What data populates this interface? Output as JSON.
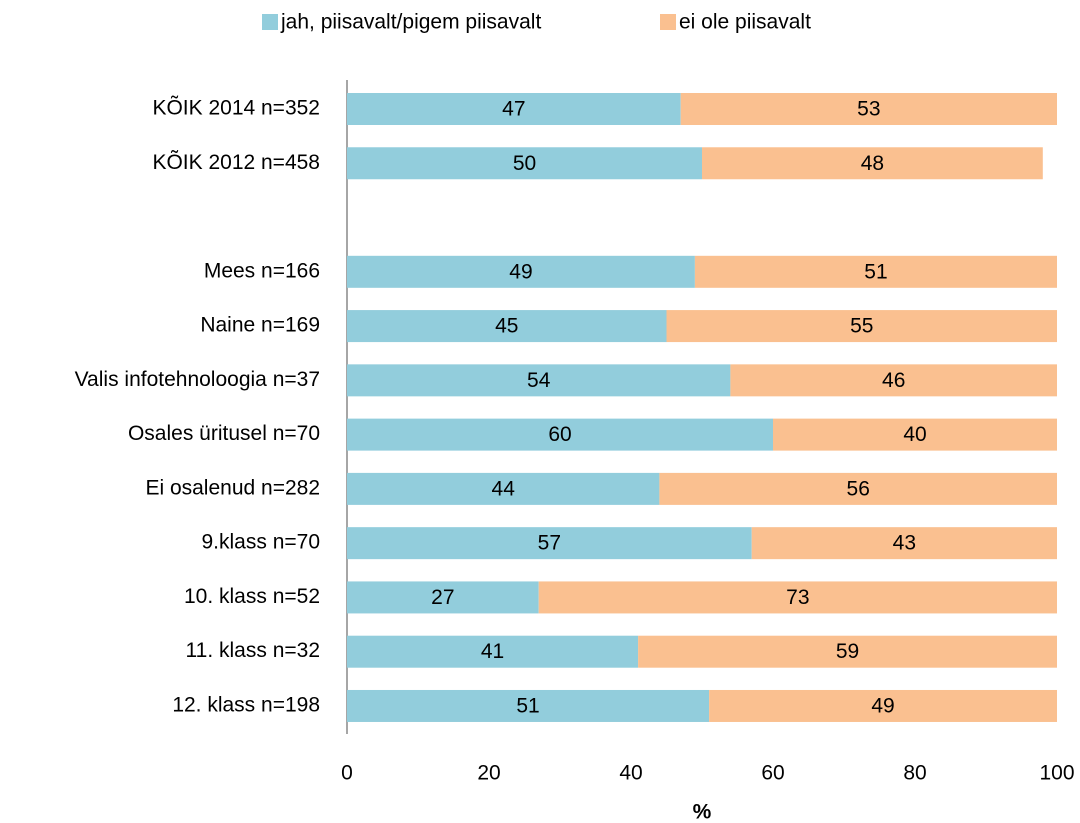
{
  "chart_data": {
    "type": "stacked_barh",
    "categories": [
      "KÕIK 2014 n=352",
      "KÕIK 2012 n=458",
      null,
      "Mees n=166",
      "Naine n=169",
      "Valis infotehnoloogia n=37",
      "Osales üritusel n=70",
      "Ei osalenud n=282",
      "9.klass n=70",
      "10. klass n=52",
      "11. klass n=32",
      "12. klass n=198"
    ],
    "series": [
      {
        "name": "jah, piisavalt/pigem  piisavalt",
        "color": "#92cddc",
        "values": [
          47,
          50,
          null,
          49,
          45,
          54,
          60,
          44,
          57,
          27,
          41,
          51
        ]
      },
      {
        "name": "ei ole piisavalt",
        "color": "#fac090",
        "values": [
          53,
          48,
          null,
          51,
          55,
          46,
          40,
          56,
          43,
          73,
          59,
          49
        ]
      }
    ],
    "xlim": [
      0,
      100
    ],
    "xticks": [
      0,
      20,
      40,
      60,
      80,
      100
    ],
    "xlabel": "%",
    "legend": "top"
  }
}
